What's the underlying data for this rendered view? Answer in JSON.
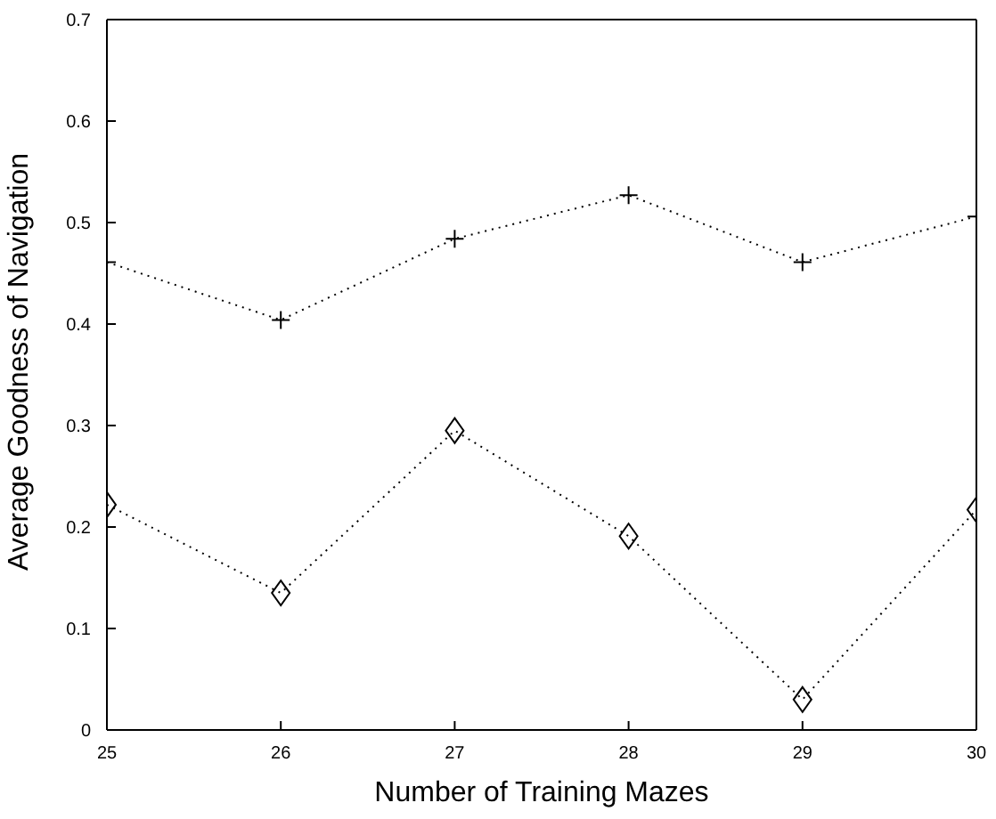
{
  "chart_data": {
    "type": "line",
    "xlabel": "Number of Training Mazes",
    "ylabel": "Average Goodness of Navigation",
    "x": [
      25,
      26,
      27,
      28,
      29,
      30
    ],
    "series": [
      {
        "color": "#000000",
        "marker": "cross",
        "values": [
          0.461,
          0.404,
          0.484,
          0.527,
          0.461,
          0.506
        ]
      },
      {
        "color": "#000000",
        "marker": "diamond",
        "values": [
          0.222,
          0.135,
          0.295,
          0.191,
          0.03,
          0.217
        ]
      }
    ],
    "xlim": [
      25,
      30
    ],
    "xticks": [
      25,
      26,
      27,
      28,
      29,
      30
    ],
    "ylim": [
      0,
      0.7
    ],
    "yticks": [
      0,
      0.1,
      0.2,
      0.3,
      0.4,
      0.5,
      0.6,
      0.7
    ],
    "grid": false,
    "legend": false,
    "line_style": "dotted"
  }
}
